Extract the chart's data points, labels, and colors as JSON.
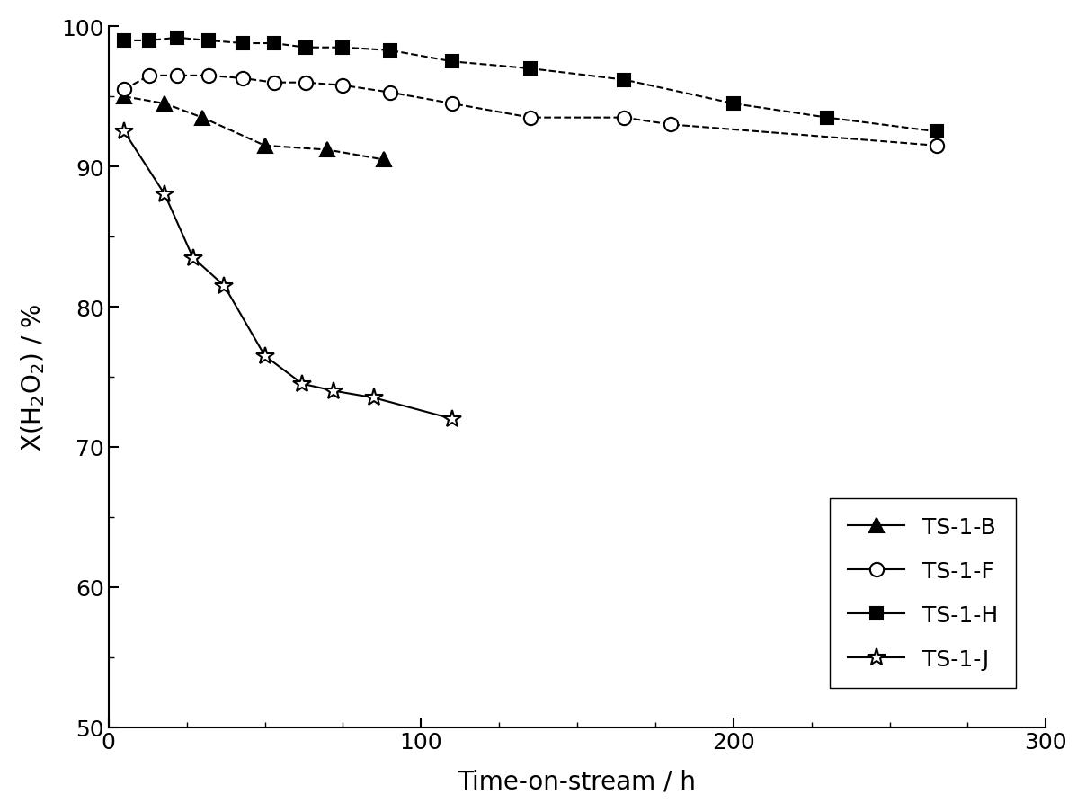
{
  "title": "",
  "xlabel": "Time-on-stream / h",
  "ylabel": "X(H₂O₂) / %",
  "xlim": [
    0,
    300
  ],
  "ylim": [
    50,
    100
  ],
  "xticks": [
    0,
    100,
    200,
    300
  ],
  "yticks": [
    50,
    60,
    70,
    80,
    90,
    100
  ],
  "series": {
    "TS-1-B": {
      "x": [
        5,
        18,
        30,
        50,
        70,
        88
      ],
      "y": [
        95.0,
        94.5,
        93.5,
        91.5,
        91.2,
        90.5
      ],
      "color": "#000000",
      "marker": "^",
      "markersize": 11,
      "linestyle": "--",
      "mfc": "#000000"
    },
    "TS-1-F": {
      "x": [
        5,
        13,
        22,
        32,
        43,
        53,
        63,
        75,
        90,
        110,
        135,
        165,
        180,
        265
      ],
      "y": [
        95.5,
        96.5,
        96.5,
        96.5,
        96.3,
        96.0,
        96.0,
        95.8,
        95.3,
        94.5,
        93.5,
        93.5,
        93.0,
        91.5
      ],
      "color": "#000000",
      "marker": "o",
      "markersize": 11,
      "linestyle": "--",
      "mfc": "#ffffff"
    },
    "TS-1-H": {
      "x": [
        5,
        13,
        22,
        32,
        43,
        53,
        63,
        75,
        90,
        110,
        135,
        165,
        200,
        230,
        265
      ],
      "y": [
        99.0,
        99.0,
        99.2,
        99.0,
        98.8,
        98.8,
        98.5,
        98.5,
        98.3,
        97.5,
        97.0,
        96.2,
        94.5,
        93.5,
        92.5
      ],
      "color": "#000000",
      "marker": "s",
      "markersize": 10,
      "linestyle": "--",
      "mfc": "#000000"
    },
    "TS-1-J": {
      "x": [
        5,
        18,
        27,
        37,
        50,
        62,
        72,
        85,
        110
      ],
      "y": [
        92.5,
        88.0,
        83.5,
        81.5,
        76.5,
        74.5,
        74.0,
        73.5,
        72.0
      ],
      "color": "#000000",
      "marker": "*",
      "markersize": 15,
      "linestyle": "-",
      "mfc": "#ffffff"
    }
  },
  "background_color": "#ffffff"
}
